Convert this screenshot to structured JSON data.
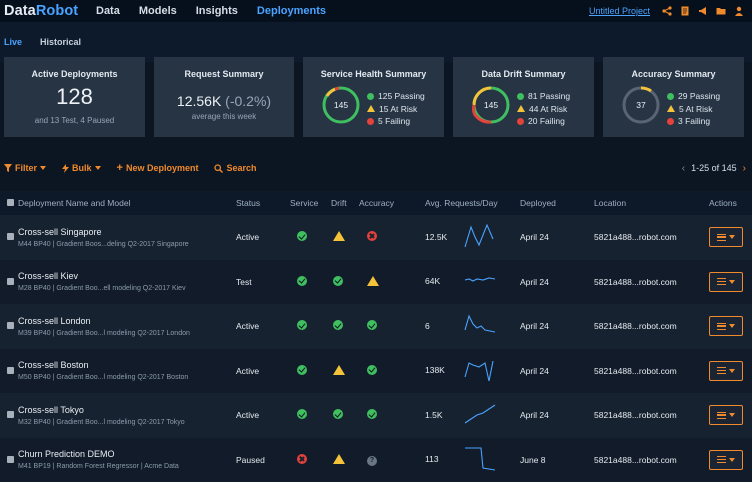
{
  "app": {
    "logo_data": "Data",
    "logo_robot": "Robot",
    "project": "Untitled Project"
  },
  "nav": [
    {
      "label": "Data"
    },
    {
      "label": "Models"
    },
    {
      "label": "Insights"
    },
    {
      "label": "Deployments"
    }
  ],
  "subnav": [
    {
      "label": "Live"
    },
    {
      "label": "Historical"
    }
  ],
  "cards": {
    "active": {
      "title": "Active Deployments",
      "value": "128",
      "sub": "and 13 Test, 4 Paused"
    },
    "request": {
      "title": "Request Summary",
      "value": "12.56K",
      "delta": "(-0.2%)",
      "sub": "average this week"
    },
    "service": {
      "title": "Service Health Summary",
      "center": "145",
      "passing": "125 Passing",
      "risk": "15 At Risk",
      "failing": "5 Failing"
    },
    "drift": {
      "title": "Data Drift Summary",
      "center": "145",
      "passing": "81 Passing",
      "risk": "44 At Risk",
      "failing": "20 Failing"
    },
    "accuracy": {
      "title": "Accuracy Summary",
      "center": "37",
      "passing": "29 Passing",
      "risk": "5 At Risk",
      "failing": "3 Failing"
    }
  },
  "toolbar": {
    "filter": "Filter",
    "bulk": "Bulk",
    "new": "New Deployment",
    "search": "Search",
    "pager": "1-25 of 145"
  },
  "table": {
    "headers": {
      "name": "Deployment Name and Model",
      "status": "Status",
      "service": "Service",
      "drift": "Drift",
      "accuracy": "Accuracy",
      "requests": "Avg. Requests/Day",
      "deployed": "Deployed",
      "location": "Location",
      "actions": "Actions"
    },
    "rows": [
      {
        "name": "Cross-sell Singapore",
        "model": "M44  BP40  |  Gradient Boos...deling Q2-2017 Singapore",
        "status": "Active",
        "service": "ok",
        "drift": "warn",
        "accuracy": "bad",
        "requests": "12.5K",
        "deployed": "April 24",
        "location": "5821a488...robot.com"
      },
      {
        "name": "Cross-sell Kiev",
        "model": "M28  BP40  |  Gradient Boo...ell modeling Q2-2017 Kiev",
        "status": "Test",
        "service": "ok",
        "drift": "ok",
        "accuracy": "warn",
        "requests": "64K",
        "deployed": "April 24",
        "location": "5821a488...robot.com"
      },
      {
        "name": "Cross-sell London",
        "model": "M39  BP40  |  Gradient Boo...l modeling Q2-2017 London",
        "status": "Active",
        "service": "ok",
        "drift": "ok",
        "accuracy": "ok",
        "requests": "6",
        "deployed": "April 24",
        "location": "5821a488...robot.com"
      },
      {
        "name": "Cross-sell Boston",
        "model": "M50  BP40  |  Gradient Boo...l modeling Q2-2017 Boston",
        "status": "Active",
        "service": "ok",
        "drift": "warn",
        "accuracy": "ok",
        "requests": "138K",
        "deployed": "April 24",
        "location": "5821a488...robot.com"
      },
      {
        "name": "Cross-sell Tokyo",
        "model": "M32  BP40  |  Gradient Boo...l modeling Q2-2017 Tokyo",
        "status": "Active",
        "service": "ok",
        "drift": "ok",
        "accuracy": "ok",
        "requests": "1.5K",
        "deployed": "April 24",
        "location": "5821a488...robot.com"
      },
      {
        "name": "Churn Prediction DEMO",
        "model": "M41  BP19  |  Random Forest Regressor  |  Acme Data",
        "status": "Paused",
        "service": "bad",
        "drift": "warn",
        "accuracy": "unk",
        "requests": "113",
        "deployed": "June 8",
        "location": "5821a488...robot.com"
      }
    ]
  }
}
